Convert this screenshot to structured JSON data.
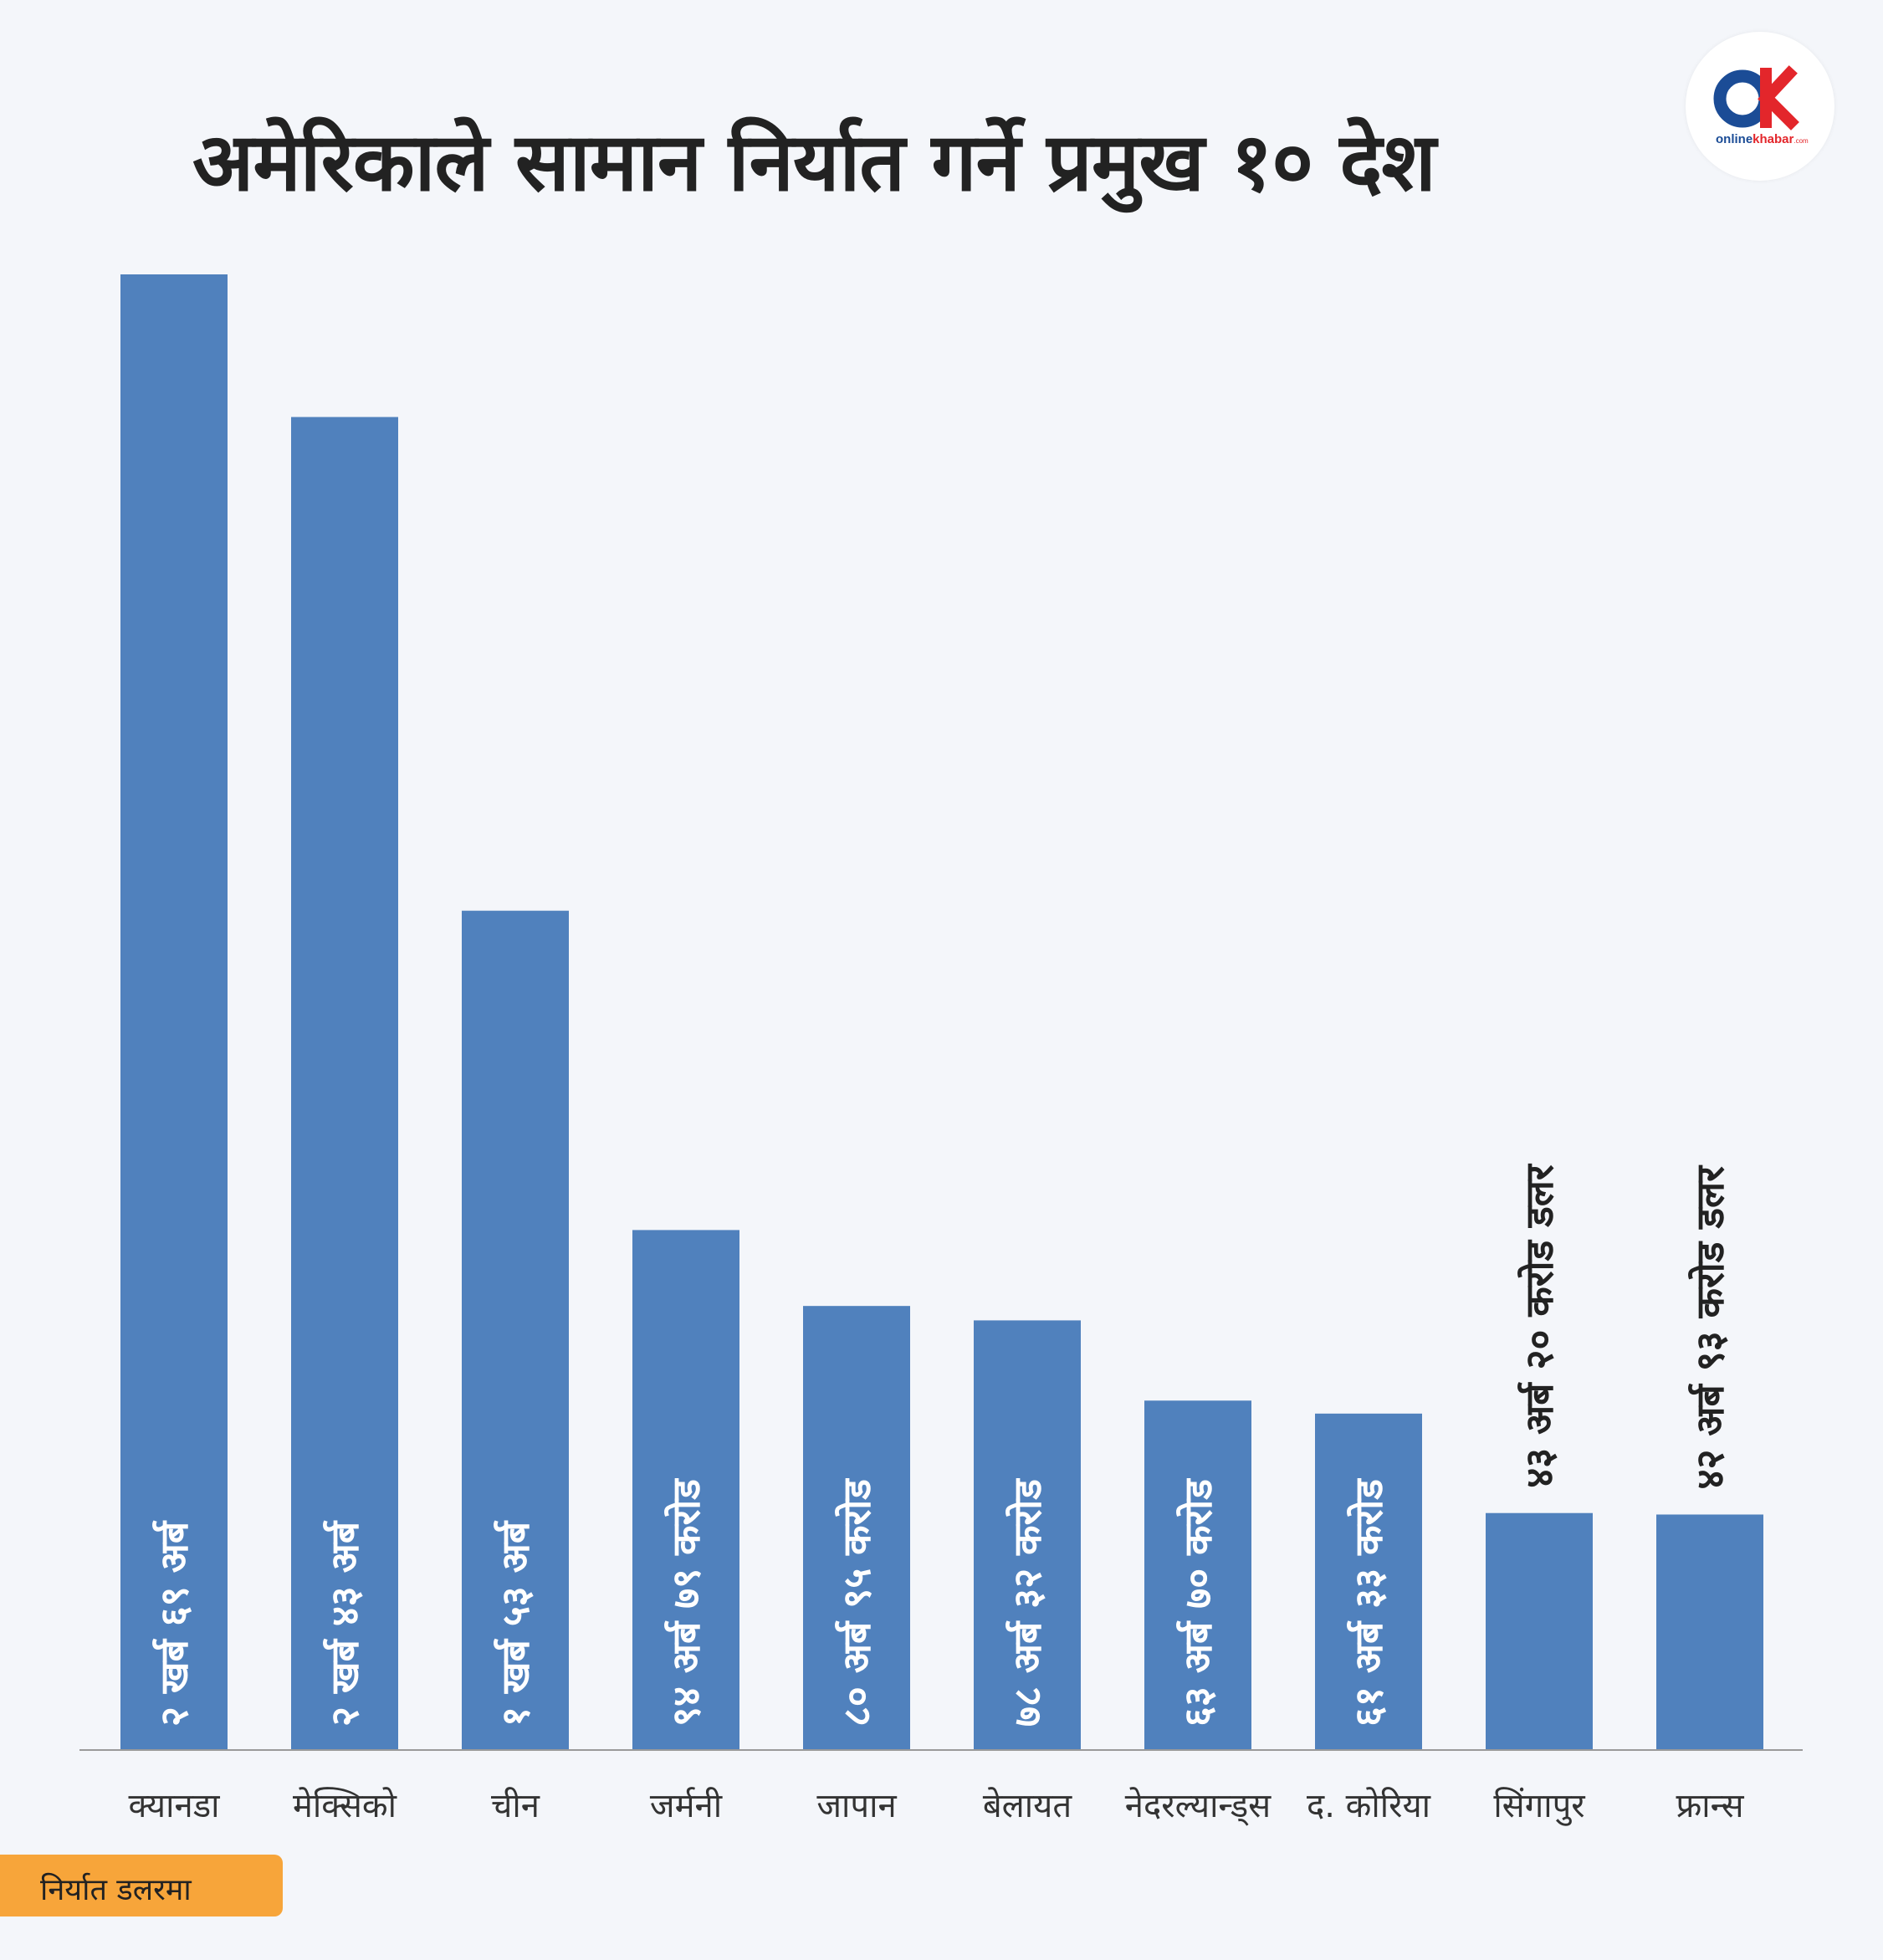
{
  "title": "अमेरिकाले सामान निर्यात गर्ने प्रमुख १० देश",
  "logo": {
    "text": "onlinekhabar",
    "suffix": ".com",
    "mark": "OK"
  },
  "note": "निर्यात डलरमा",
  "colors": {
    "bar": "#5081bd",
    "background": "#f4f6fa",
    "note": "#f7a53a",
    "logo_blue": "#1b4c96",
    "logo_red": "#e3262b"
  },
  "chart_data": {
    "type": "bar",
    "title": "अमेरिकाले सामान निर्यात गर्ने प्रमुख १० देश",
    "categories": [
      "क्यानडा",
      "मेक्सिको",
      "चीन",
      "जर्मनी",
      "जापान",
      "बेलायत",
      "नेदरल्यान्ड्स",
      "द. कोरिया",
      "सिंगापुर",
      "फ्रान्स"
    ],
    "values": [
      269,
      243,
      153,
      94.79,
      80.95,
      78.32,
      63.7,
      61.33,
      43.2,
      42.93
    ],
    "value_unit": "अर्ब डलर",
    "labels": [
      "२ खर्ब ६९ अर्ब",
      "२ खर्ब ४३ अर्ब",
      "१ खर्ब ५३ अर्ब",
      "९४ अर्ब ७९ करोड",
      "८० अर्ब ९५ करोड",
      "७८ अर्ब ३२ करोड",
      "६३ अर्ब ७० करोड",
      "६१ अर्ब ३३ करोड",
      "४३ अर्ब २० करोड डलर",
      "४२ अर्ब ९३ करोड डलर"
    ],
    "label_inside": [
      true,
      true,
      true,
      true,
      true,
      true,
      true,
      true,
      false,
      false
    ],
    "xlabel": "",
    "ylabel": "",
    "ylim": [
      0,
      269
    ],
    "grid": false,
    "legend": "none"
  }
}
